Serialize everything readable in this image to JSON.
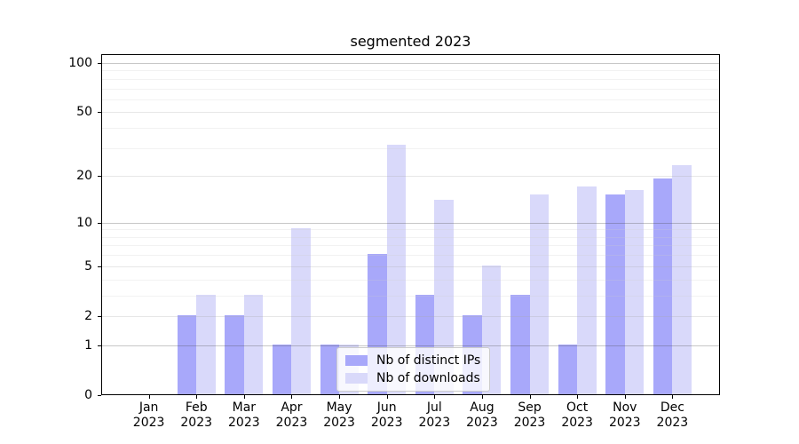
{
  "chart_data": {
    "type": "bar",
    "title": "segmented 2023",
    "categories": [
      "Jan",
      "Feb",
      "Mar",
      "Apr",
      "May",
      "Jun",
      "Jul",
      "Aug",
      "Sep",
      "Oct",
      "Nov",
      "Dec"
    ],
    "year": "2023",
    "series": [
      {
        "name": "Nb of distinct IPs",
        "color": "#a8a8fa",
        "values": [
          0,
          2,
          2,
          1,
          1,
          6,
          3,
          2,
          3,
          1,
          15,
          19
        ]
      },
      {
        "name": "Nb of downloads",
        "color": "#d9d9fa",
        "values": [
          0,
          3,
          3,
          9,
          1,
          31,
          14,
          5,
          15,
          17,
          16,
          23
        ]
      }
    ],
    "yscale": "log1p",
    "yticks": [
      0,
      1,
      2,
      5,
      10,
      20,
      50,
      100
    ],
    "decade_ticks": [
      1,
      10,
      100
    ],
    "minor_gridlines": [
      3,
      4,
      6,
      7,
      8,
      9,
      30,
      40,
      60,
      70,
      80,
      90
    ],
    "ylim": [
      0,
      114
    ],
    "grid": true,
    "legend_position": "lower center",
    "colors": {
      "grid_decade": "rgba(70,70,70,0.30)",
      "grid_major": "rgba(170,170,170,0.28)",
      "grid_minor": "rgba(205,205,205,0.26)",
      "axis": "#000000"
    }
  }
}
